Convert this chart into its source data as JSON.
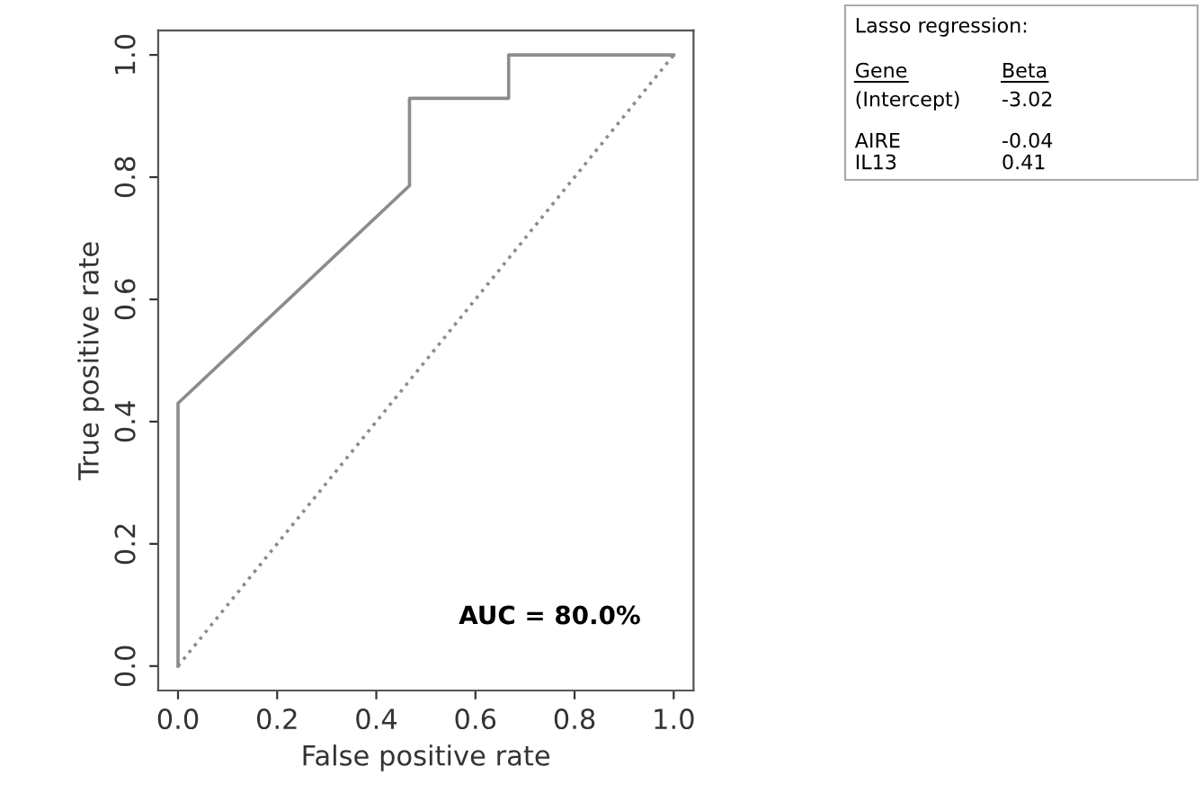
{
  "chart_data": {
    "type": "line",
    "xlabel": "False positive rate",
    "ylabel": "True positive rate",
    "series": [
      {
        "color": "#8c8c8c",
        "line_style": "solid",
        "x": [
          0,
          0,
          0.467,
          0.467,
          0.667,
          0.667,
          1.0
        ],
        "values": [
          0,
          0.43,
          0.786,
          0.929,
          0.929,
          1.0,
          1.0
        ]
      },
      {
        "color": "#8c8c8c",
        "line_style": "dotted",
        "x": [
          0,
          1
        ],
        "values": [
          0,
          1
        ]
      }
    ],
    "xlim": [
      -0.04,
      1.04
    ],
    "ylim": [
      -0.04,
      1.04
    ],
    "xticks": [
      {
        "value": 0,
        "label": "0.0"
      },
      0.2,
      0.4,
      0.6,
      0.8,
      {
        "value": 1,
        "label": "1.0"
      }
    ],
    "yticks": [
      {
        "value": 0,
        "label": "0.0"
      },
      0.2,
      0.4,
      0.6,
      0.8,
      {
        "value": 1,
        "label": "1.0"
      }
    ],
    "grid": false,
    "legend": false,
    "annotations": [
      "AUC = 80.0%",
      "Lasso regression:",
      "Gene",
      "Beta",
      "(Intercept)",
      "-3.02",
      "AIRE",
      "-0.04",
      "IL13",
      "0.41"
    ]
  }
}
